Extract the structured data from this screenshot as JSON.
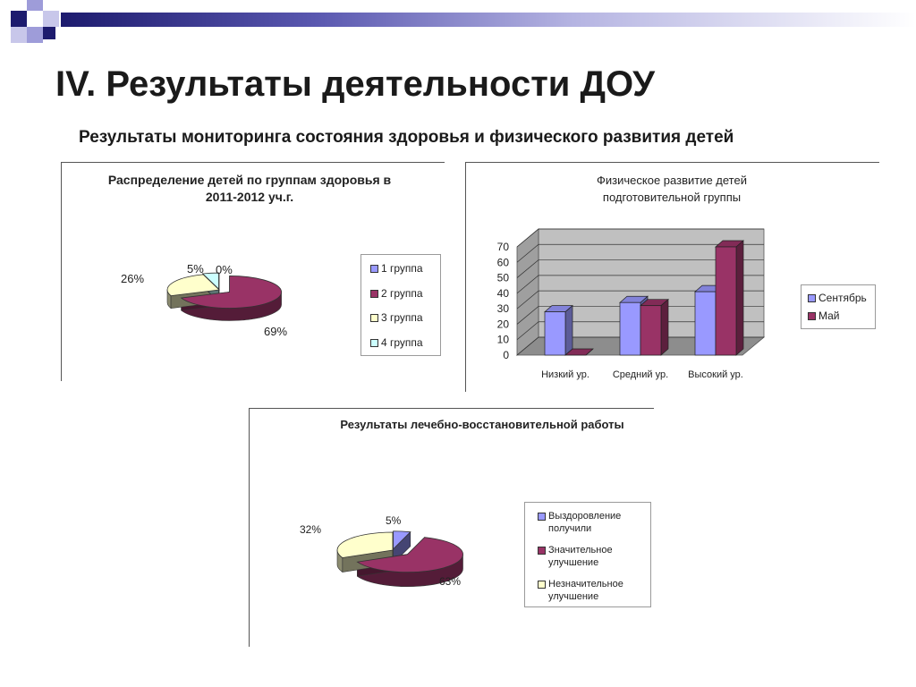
{
  "slide": {
    "title": "IV. Результаты деятельности ДОУ",
    "subtitle": "Результаты мониторинга состояния здоровья и физического развития детей"
  },
  "colors": {
    "navy": "#1d1b6e",
    "lavender": "#9e9cd9",
    "blue": "#9999ff",
    "maroon": "#993366",
    "cream": "#ffffcc",
    "lightcyan": "#ccffff"
  },
  "chart_data": [
    {
      "type": "pie",
      "title": "Распределение детей по группам здоровья в 2011-2012 уч.г.",
      "categories": [
        "1 группа",
        "2 группа",
        "3 группа",
        "4 группа"
      ],
      "values": [
        0,
        69,
        26,
        5
      ],
      "labels": [
        "0%",
        "69%",
        "26%",
        "5%"
      ],
      "colors": [
        "#9999ff",
        "#993366",
        "#ffffcc",
        "#ccffff"
      ],
      "legend": "right"
    },
    {
      "type": "bar",
      "title": "Физическое развитие детей подготовительной группы",
      "categories": [
        "Низкий ур.",
        "Средний ур.",
        "Высокий ур."
      ],
      "series": [
        {
          "name": "Сентябрь",
          "values": [
            28,
            34,
            41
          ],
          "color": "#9999ff"
        },
        {
          "name": "Май",
          "values": [
            0,
            32,
            70
          ],
          "color": "#993366"
        }
      ],
      "ylim": [
        0,
        70
      ],
      "yticks": [
        "0",
        "10",
        "20",
        "30",
        "40",
        "50",
        "60",
        "70"
      ],
      "grid": true,
      "legend": "right"
    },
    {
      "type": "pie",
      "title": "Результаты лечебно-восстановительной работы",
      "categories": [
        "Выздоровление получили",
        "Значительное улучшение",
        "Незначительное улучшение"
      ],
      "values": [
        5,
        63,
        32
      ],
      "labels": [
        "5%",
        "63%",
        "32%"
      ],
      "colors": [
        "#9999ff",
        "#993366",
        "#ffffcc"
      ],
      "legend": "right"
    }
  ]
}
